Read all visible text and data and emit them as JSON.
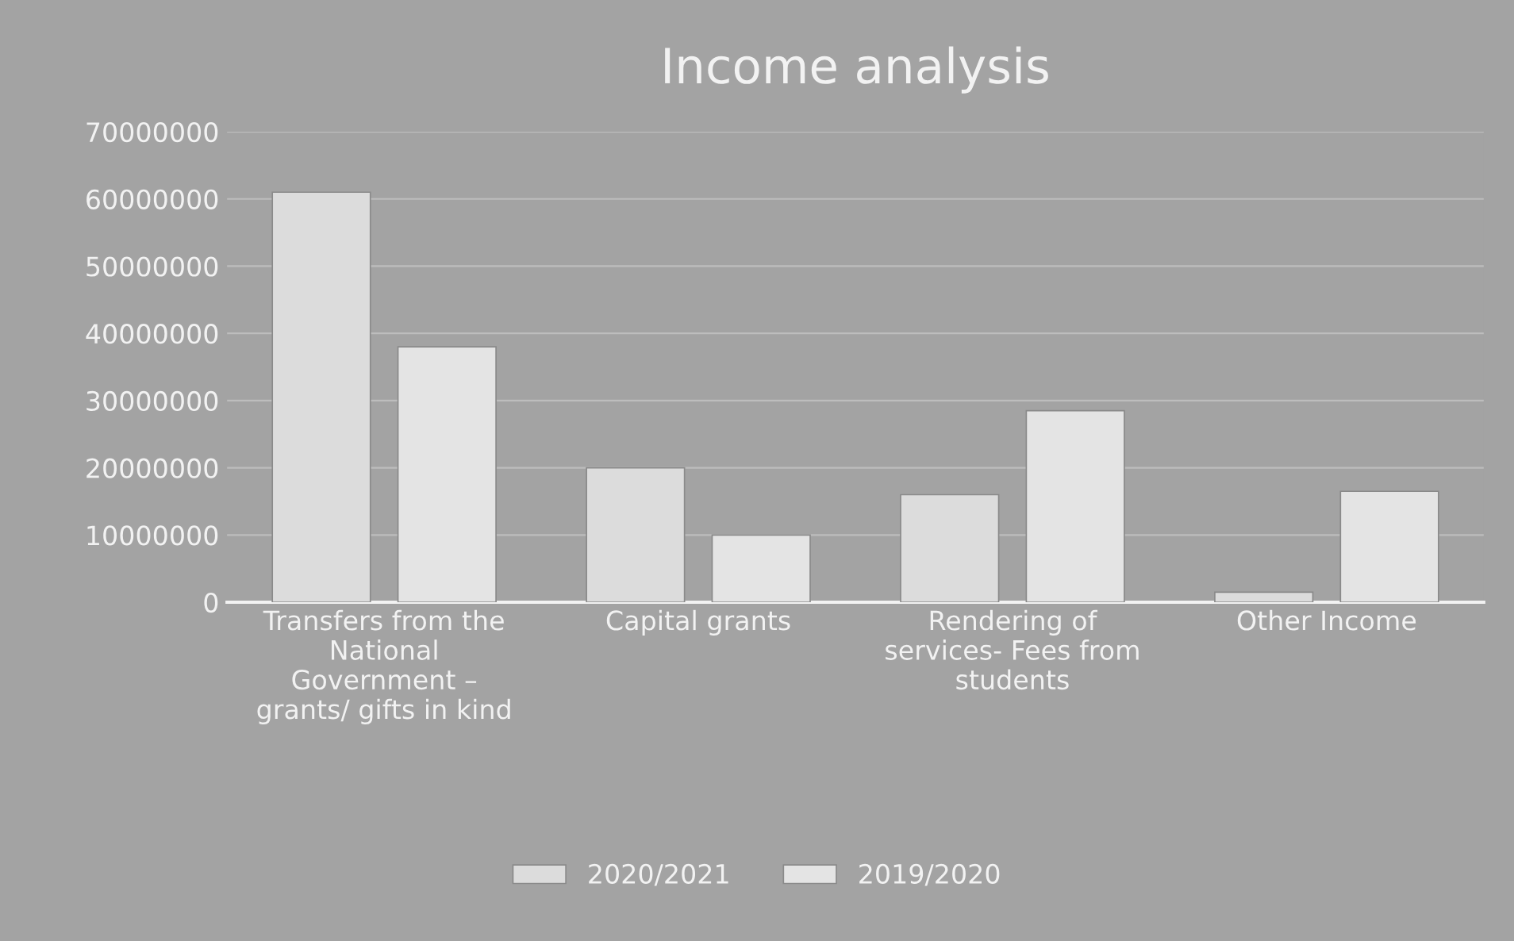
{
  "chart_data": {
    "type": "bar",
    "title": "Income analysis",
    "categories": [
      "Transfers from the\nNational\nGovernment –\ngrants/ gifts in kind",
      "Capital grants",
      "Rendering of\nservices- Fees from\nstudents",
      "Other Income"
    ],
    "series": [
      {
        "name": "2020/2021",
        "color": "#dcdcdc",
        "values": [
          61000000,
          20000000,
          16000000,
          1500000
        ]
      },
      {
        "name": "2019/2020",
        "color": "#e4e4e4",
        "values": [
          38000000,
          10000000,
          28500000,
          16500000
        ]
      }
    ],
    "ylim": [
      0,
      70000000
    ],
    "yticks": [
      0,
      10000000,
      20000000,
      30000000,
      40000000,
      50000000,
      60000000,
      70000000
    ],
    "grid": "y",
    "legend": "bottom"
  }
}
